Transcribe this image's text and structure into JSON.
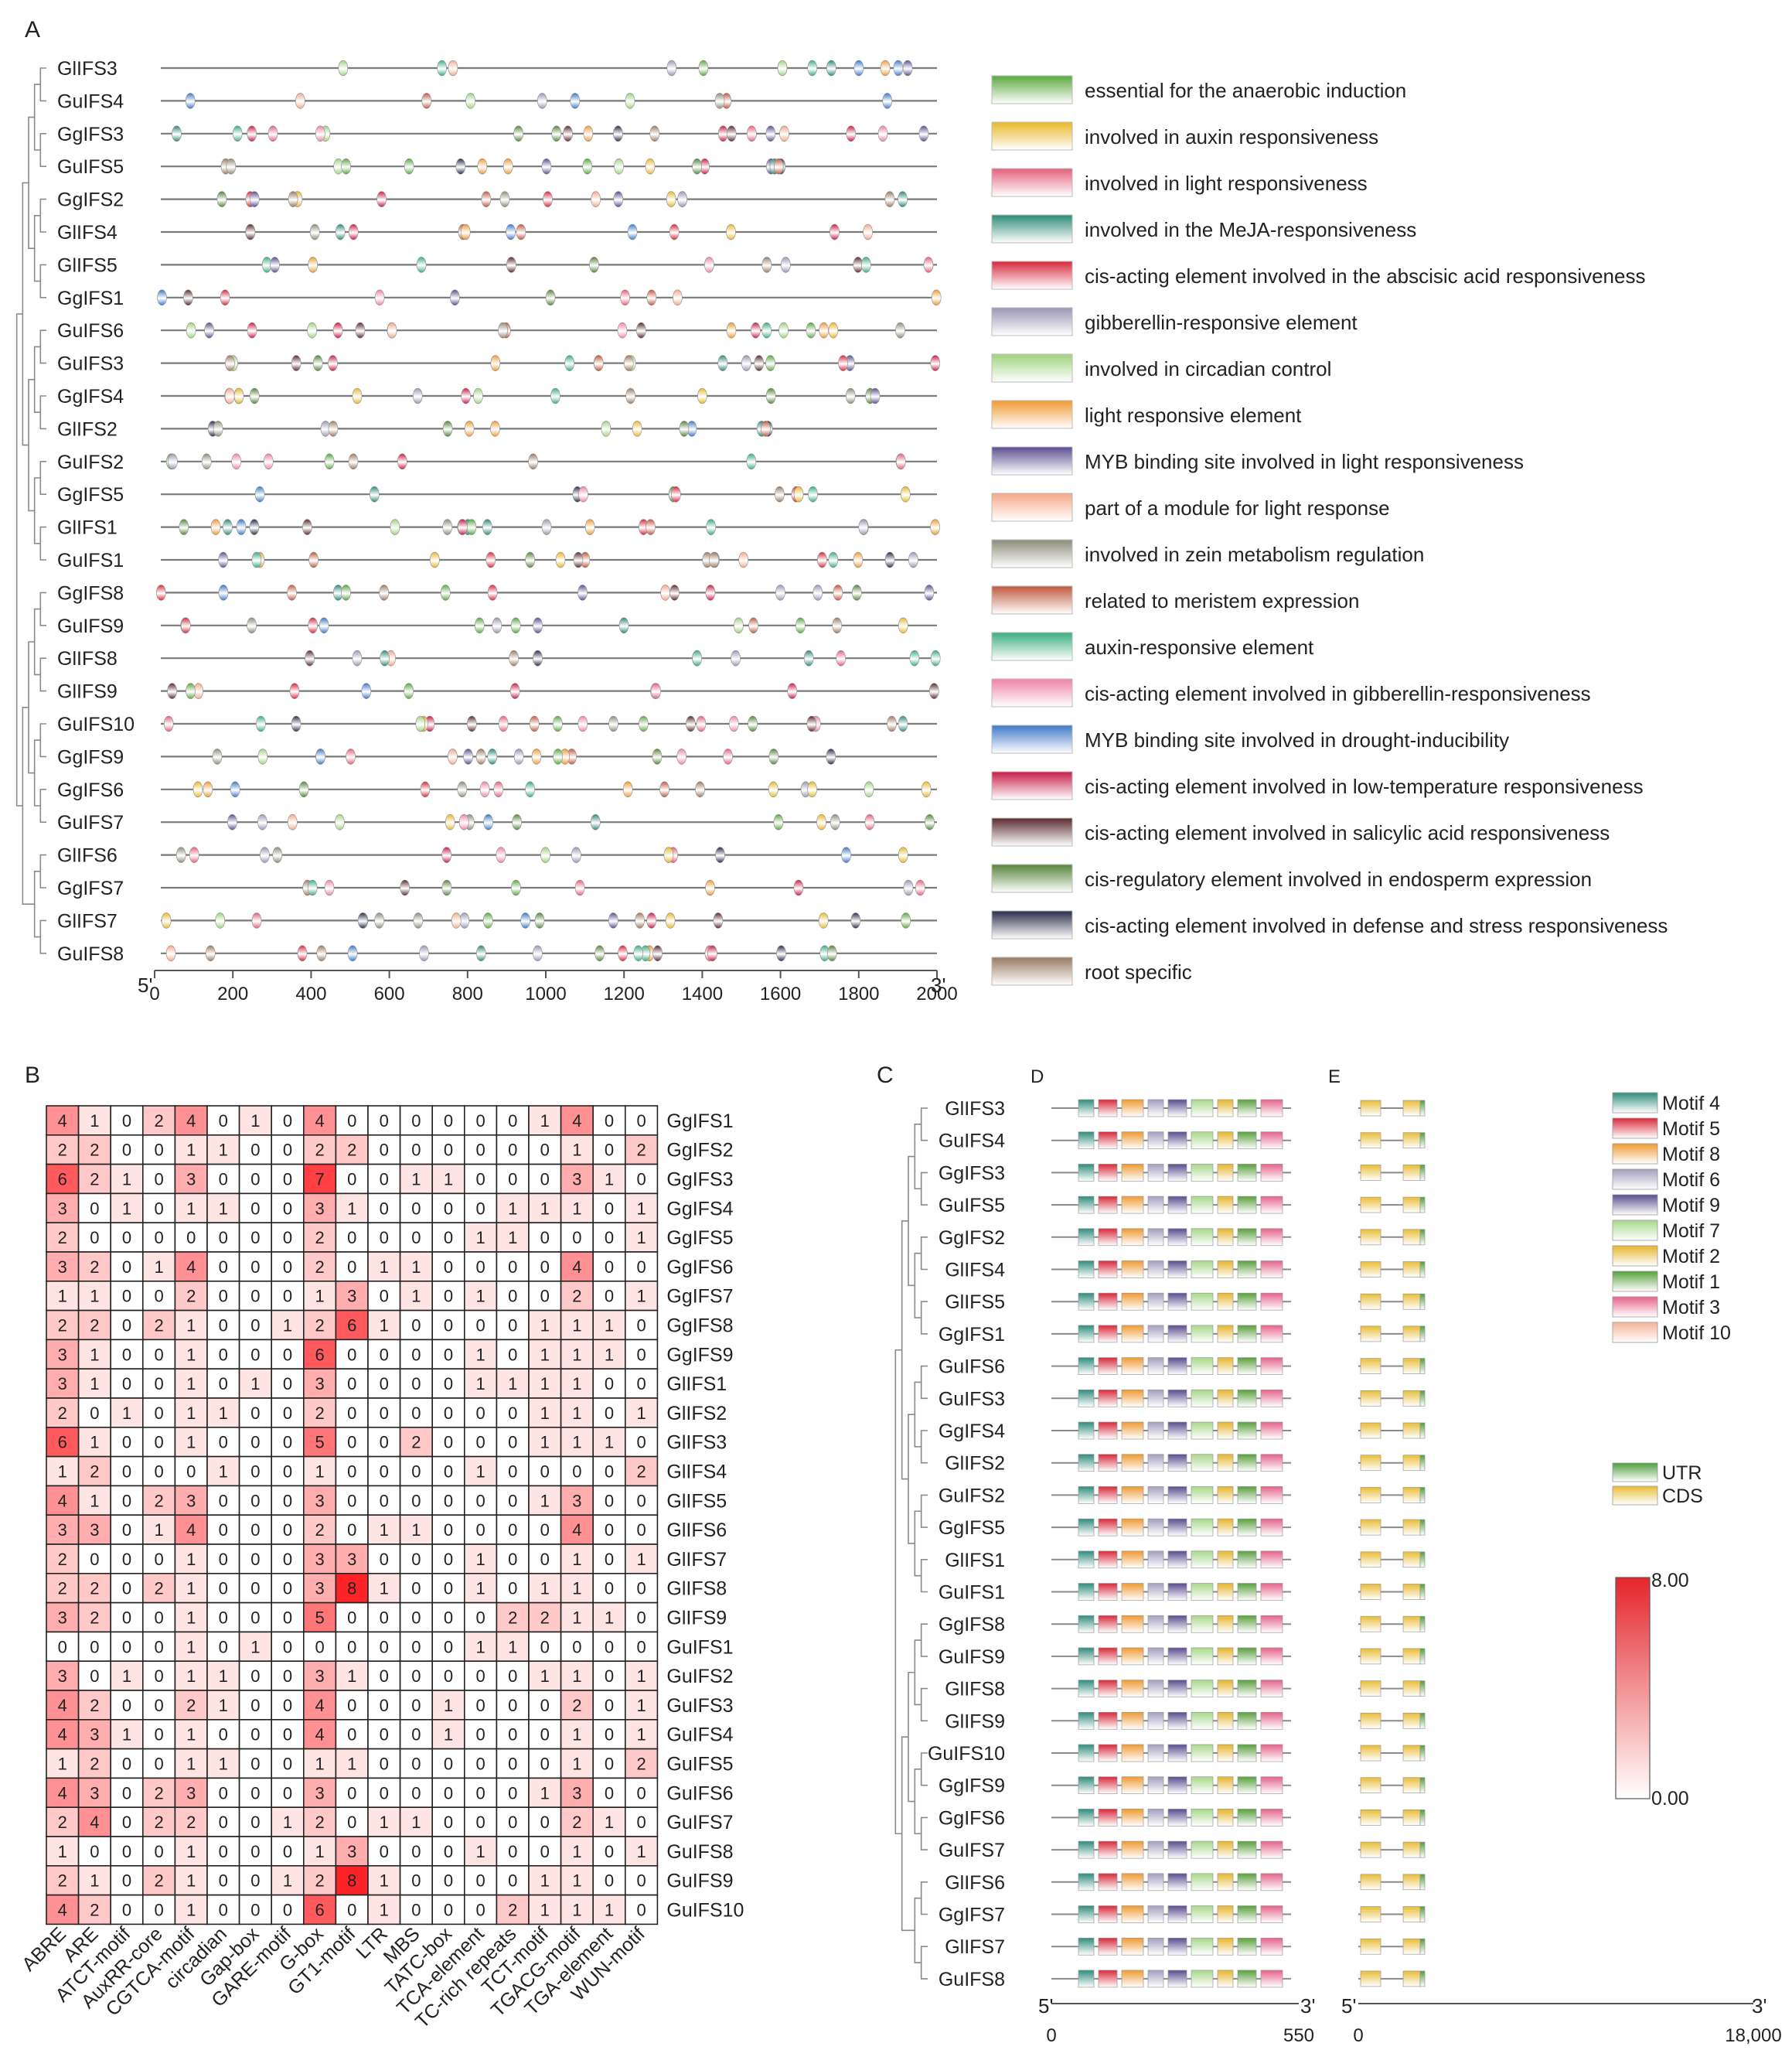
{
  "panel_labels": {
    "a": "A",
    "b": "B",
    "c": "C",
    "d": "D",
    "e": "E"
  },
  "element_types": [
    {
      "label": "essential for the anaerobic induction",
      "color": "#5aa83c"
    },
    {
      "label": "involved in auxin responsiveness",
      "color": "#e8b82a"
    },
    {
      "label": "involved in light responsiveness",
      "color": "#e4607e"
    },
    {
      "label": "involved in the MeJA-responsiveness",
      "color": "#2d8a78"
    },
    {
      "label": "cis-acting element involved in the abscisic acid responsiveness",
      "color": "#d8283c"
    },
    {
      "label": "gibberellin-responsive element",
      "color": "#9a96b4"
    },
    {
      "label": "involved in circadian control",
      "color": "#9fd27e"
    },
    {
      "label": "light responsive element",
      "color": "#ef9a32"
    },
    {
      "label": "MYB binding site involved in light responsiveness",
      "color": "#5b4e90"
    },
    {
      "label": "part of a module for light response",
      "color": "#f4a888"
    },
    {
      "label": "involved in zein metabolism regulation",
      "color": "#8c8c7a"
    },
    {
      "label": "related to meristem expression",
      "color": "#c0583e"
    },
    {
      "label": "auxin-responsive element",
      "color": "#3aae80"
    },
    {
      "label": "cis-acting element involved in gibberellin-responsiveness",
      "color": "#ef82a8"
    },
    {
      "label": "MYB binding site involved in drought-inducibility",
      "color": "#3e78c8"
    },
    {
      "label": "cis-acting element involved in low-temperature responsiveness",
      "color": "#c81e48"
    },
    {
      "label": "cis-acting element involved in salicylic acid responsiveness",
      "color": "#5a2a2e"
    },
    {
      "label": "cis-regulatory element involved in endosperm expression",
      "color": "#56843a"
    },
    {
      "label": "cis-acting element involved in defense and stress responsiveness",
      "color": "#2a2e4a"
    },
    {
      "label": "root specific",
      "color": "#9a7a62"
    }
  ],
  "promoter_genes": [
    "GlIFS3",
    "GuIFS4",
    "GgIFS3",
    "GuIFS5",
    "GgIFS2",
    "GlIFS4",
    "GlIFS5",
    "GgIFS1",
    "GuIFS6",
    "GuIFS3",
    "GgIFS4",
    "GlIFS2",
    "GuIFS2",
    "GgIFS5",
    "GlIFS1",
    "GuIFS1",
    "GgIFS8",
    "GuIFS9",
    "GlIFS8",
    "GlIFS9",
    "GuIFS10",
    "GgIFS9",
    "GgIFS6",
    "GuIFS7",
    "GlIFS6",
    "GgIFS7",
    "GlIFS7",
    "GuIFS8"
  ],
  "promoter_axis": {
    "start_label": "5'",
    "end_label": "3'",
    "ticks": [
      "0",
      "200",
      "400",
      "600",
      "800",
      "1000",
      "1200",
      "1400",
      "1600",
      "1800",
      "2000"
    ],
    "max": 2000
  },
  "heatmap": {
    "rows": [
      "GgIFS1",
      "GgIFS2",
      "GgIFS3",
      "GgIFS4",
      "GgIFS5",
      "GgIFS6",
      "GgIFS7",
      "GgIFS8",
      "GgIFS9",
      "GlIFS1",
      "GlIFS2",
      "GlIFS3",
      "GlIFS4",
      "GlIFS5",
      "GlIFS6",
      "GlIFS7",
      "GlIFS8",
      "GlIFS9",
      "GuIFS1",
      "GuIFS2",
      "GuIFS3",
      "GuIFS4",
      "GuIFS5",
      "GuIFS6",
      "GuIFS7",
      "GuIFS8",
      "GuIFS9",
      "GuIFS10"
    ],
    "cols": [
      "ABRE",
      "ARE",
      "ATCT-motif",
      "AuxRR-core",
      "CGTCA-motif",
      "circadian",
      "Gap-box",
      "GARE-motif",
      "G-box",
      "GT1-motif",
      "LTR",
      "MBS",
      "TATC-box",
      "TCA-element",
      "TC-rich repeats",
      "TCT-motif",
      "TGACG-motif",
      "TGA-element",
      "WUN-motif"
    ],
    "values": [
      [
        4,
        1,
        0,
        2,
        4,
        0,
        1,
        0,
        4,
        0,
        0,
        0,
        0,
        0,
        0,
        1,
        4,
        0,
        0
      ],
      [
        2,
        2,
        0,
        0,
        1,
        1,
        0,
        0,
        2,
        2,
        0,
        0,
        0,
        0,
        0,
        0,
        1,
        0,
        2
      ],
      [
        6,
        2,
        1,
        0,
        3,
        0,
        0,
        0,
        7,
        0,
        0,
        1,
        1,
        0,
        0,
        0,
        3,
        1,
        0
      ],
      [
        3,
        0,
        1,
        0,
        1,
        1,
        0,
        0,
        3,
        1,
        0,
        0,
        0,
        0,
        1,
        1,
        1,
        0,
        1
      ],
      [
        2,
        0,
        0,
        0,
        0,
        0,
        0,
        0,
        2,
        0,
        0,
        0,
        0,
        1,
        1,
        0,
        0,
        0,
        1
      ],
      [
        3,
        2,
        0,
        1,
        4,
        0,
        0,
        0,
        2,
        0,
        1,
        1,
        0,
        0,
        0,
        0,
        4,
        0,
        0
      ],
      [
        1,
        1,
        0,
        0,
        2,
        0,
        0,
        0,
        1,
        3,
        0,
        1,
        0,
        1,
        0,
        0,
        2,
        0,
        1
      ],
      [
        2,
        2,
        0,
        2,
        1,
        0,
        0,
        1,
        2,
        6,
        1,
        0,
        0,
        0,
        0,
        1,
        1,
        1,
        0
      ],
      [
        3,
        1,
        0,
        0,
        1,
        0,
        0,
        0,
        6,
        0,
        0,
        0,
        0,
        1,
        0,
        1,
        1,
        1,
        0
      ],
      [
        3,
        1,
        0,
        0,
        1,
        0,
        1,
        0,
        3,
        0,
        0,
        0,
        0,
        1,
        1,
        1,
        1,
        0,
        0
      ],
      [
        2,
        0,
        1,
        0,
        1,
        1,
        0,
        0,
        2,
        0,
        0,
        0,
        0,
        0,
        0,
        1,
        1,
        0,
        1
      ],
      [
        6,
        1,
        0,
        0,
        1,
        0,
        0,
        0,
        5,
        0,
        0,
        2,
        0,
        0,
        0,
        1,
        1,
        1,
        0
      ],
      [
        1,
        2,
        0,
        0,
        0,
        1,
        0,
        0,
        1,
        0,
        0,
        0,
        0,
        1,
        0,
        0,
        0,
        0,
        2
      ],
      [
        4,
        1,
        0,
        2,
        3,
        0,
        0,
        0,
        3,
        0,
        0,
        0,
        0,
        0,
        0,
        1,
        3,
        0,
        0
      ],
      [
        3,
        3,
        0,
        1,
        4,
        0,
        0,
        0,
        2,
        0,
        1,
        1,
        0,
        0,
        0,
        0,
        4,
        0,
        0
      ],
      [
        2,
        0,
        0,
        0,
        1,
        0,
        0,
        0,
        3,
        3,
        0,
        0,
        0,
        1,
        0,
        0,
        1,
        0,
        1
      ],
      [
        2,
        2,
        0,
        2,
        1,
        0,
        0,
        0,
        3,
        8,
        1,
        0,
        0,
        1,
        0,
        1,
        1,
        0,
        0
      ],
      [
        3,
        2,
        0,
        0,
        1,
        0,
        0,
        0,
        5,
        0,
        0,
        0,
        0,
        0,
        2,
        2,
        1,
        1,
        0
      ],
      [
        0,
        0,
        0,
        0,
        1,
        0,
        1,
        0,
        0,
        0,
        0,
        0,
        0,
        1,
        1,
        0,
        0,
        0,
        0
      ],
      [
        3,
        0,
        1,
        0,
        1,
        1,
        0,
        0,
        3,
        1,
        0,
        0,
        0,
        0,
        0,
        1,
        1,
        0,
        1
      ],
      [
        4,
        2,
        0,
        0,
        2,
        1,
        0,
        0,
        4,
        0,
        0,
        0,
        1,
        0,
        0,
        0,
        2,
        0,
        1
      ],
      [
        4,
        3,
        1,
        0,
        1,
        0,
        0,
        0,
        4,
        0,
        0,
        0,
        1,
        0,
        0,
        0,
        1,
        0,
        1
      ],
      [
        1,
        2,
        0,
        0,
        1,
        1,
        0,
        0,
        1,
        1,
        0,
        0,
        0,
        0,
        0,
        0,
        1,
        0,
        2
      ],
      [
        4,
        3,
        0,
        2,
        3,
        0,
        0,
        0,
        3,
        0,
        0,
        0,
        0,
        0,
        0,
        1,
        3,
        0,
        0
      ],
      [
        2,
        4,
        0,
        2,
        2,
        0,
        0,
        1,
        2,
        0,
        1,
        1,
        0,
        0,
        0,
        0,
        2,
        1,
        0
      ],
      [
        1,
        0,
        0,
        0,
        1,
        0,
        0,
        0,
        1,
        3,
        0,
        0,
        0,
        1,
        0,
        0,
        1,
        0,
        1
      ],
      [
        2,
        1,
        0,
        2,
        1,
        0,
        0,
        1,
        2,
        8,
        1,
        0,
        0,
        0,
        0,
        1,
        1,
        0,
        0
      ],
      [
        4,
        2,
        0,
        0,
        1,
        0,
        0,
        0,
        6,
        0,
        1,
        0,
        0,
        0,
        2,
        1,
        1,
        1,
        0
      ]
    ],
    "scale_max_label": "8.00",
    "scale_min_label": "0.00",
    "scale_max": 8
  },
  "motif_genes": [
    "GlIFS3",
    "GuIFS4",
    "GgIFS3",
    "GuIFS5",
    "GgIFS2",
    "GlIFS4",
    "GlIFS5",
    "GgIFS1",
    "GuIFS6",
    "GuIFS3",
    "GgIFS4",
    "GlIFS2",
    "GuIFS2",
    "GgIFS5",
    "GlIFS1",
    "GuIFS1",
    "GgIFS8",
    "GuIFS9",
    "GlIFS8",
    "GlIFS9",
    "GuIFS10",
    "GgIFS9",
    "GgIFS6",
    "GuIFS7",
    "GlIFS6",
    "GgIFS7",
    "GlIFS7",
    "GuIFS8"
  ],
  "motif_legend": [
    {
      "label": "Motif 4",
      "color": "#2f8c7c"
    },
    {
      "label": "Motif 5",
      "color": "#d8293a"
    },
    {
      "label": "Motif 8",
      "color": "#ee9a32"
    },
    {
      "label": "Motif 6",
      "color": "#a39fbf"
    },
    {
      "label": "Motif 9",
      "color": "#5a4c8e"
    },
    {
      "label": "Motif 7",
      "color": "#a8d88a"
    },
    {
      "label": "Motif 2",
      "color": "#e6b52c"
    },
    {
      "label": "Motif 1",
      "color": "#58a03c"
    },
    {
      "label": "Motif 3",
      "color": "#e5628a"
    },
    {
      "label": "Motif 10",
      "color": "#f4b498"
    }
  ],
  "motif_axis": {
    "start_label": "5'",
    "end_label": "3'",
    "min_label": "0",
    "max_label": "550",
    "max": 550
  },
  "gene_axis": {
    "start_label": "5'",
    "end_label": "3'",
    "min_label": "0",
    "max_label": "18,000",
    "max": 18000
  },
  "gene_legend": [
    {
      "label": "UTR",
      "color": "#4f9e3e"
    },
    {
      "label": "CDS",
      "color": "#e9bd36"
    }
  ]
}
